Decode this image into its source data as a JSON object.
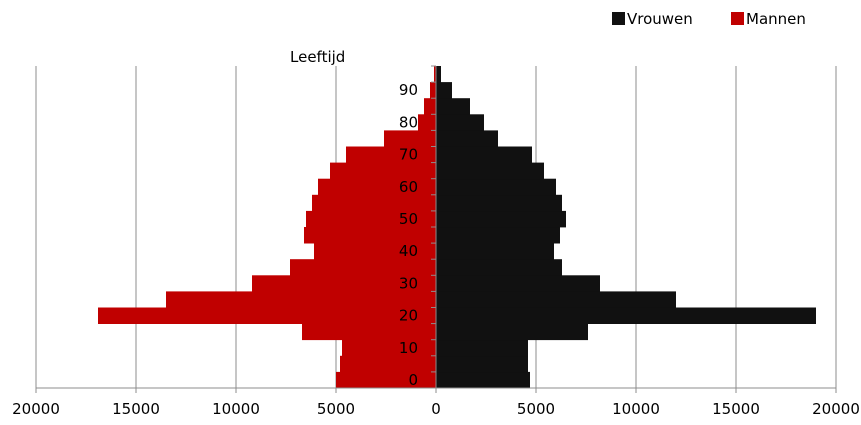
{
  "chart_data": {
    "type": "bar",
    "orientation": "horizontal",
    "subtype": "population-pyramid",
    "ylabel": "Leeftijd",
    "xlim": [
      -20000,
      20000
    ],
    "x_ticks": [
      -20000,
      -15000,
      -10000,
      -5000,
      0,
      5000,
      10000,
      15000,
      20000
    ],
    "x_tick_labels": [
      "20000",
      "15000",
      "10000",
      "5000",
      "0",
      "5000",
      "10000",
      "15000",
      "20000"
    ],
    "age_tick_labels": [
      "0",
      "10",
      "20",
      "30",
      "40",
      "50",
      "60",
      "70",
      "80",
      "90"
    ],
    "age_groups": [
      0,
      5,
      10,
      15,
      20,
      25,
      30,
      35,
      40,
      45,
      50,
      55,
      60,
      65,
      70,
      75,
      80,
      85,
      90,
      95
    ],
    "legend_position": "top-right",
    "grid": "vertical",
    "series": [
      {
        "name": "Vrouwen",
        "color": "#111111",
        "side": "right",
        "values": [
          4700,
          4600,
          4600,
          7600,
          19000,
          12000,
          8200,
          6300,
          5900,
          6200,
          6500,
          6300,
          6000,
          5400,
          4800,
          3100,
          2400,
          1700,
          800,
          250
        ]
      },
      {
        "name": "Mannen",
        "color": "#c00000",
        "side": "left",
        "values": [
          5000,
          4800,
          4700,
          6700,
          16900,
          13500,
          9200,
          7300,
          6100,
          6600,
          6500,
          6200,
          5900,
          5300,
          4500,
          2600,
          900,
          600,
          300,
          100
        ]
      }
    ]
  }
}
